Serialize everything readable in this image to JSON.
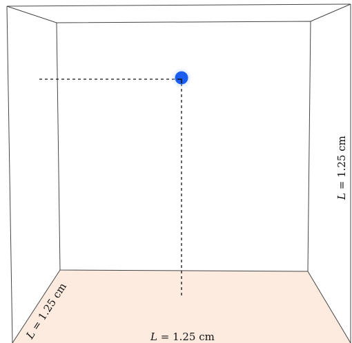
{
  "box": {
    "floor_color": "#fdebdf",
    "edge_color": "#444444"
  },
  "particle": {
    "color": "#1a5cf0",
    "glow_color": "#9ec5ff"
  },
  "labels": {
    "right_edge": {
      "var": "L",
      "value": " = 1.25 cm"
    },
    "bottom_edge": {
      "var": "L",
      "value": " = 1.25 cm"
    },
    "left_edge": {
      "var": "L",
      "value": " = 1.25 cm"
    }
  }
}
